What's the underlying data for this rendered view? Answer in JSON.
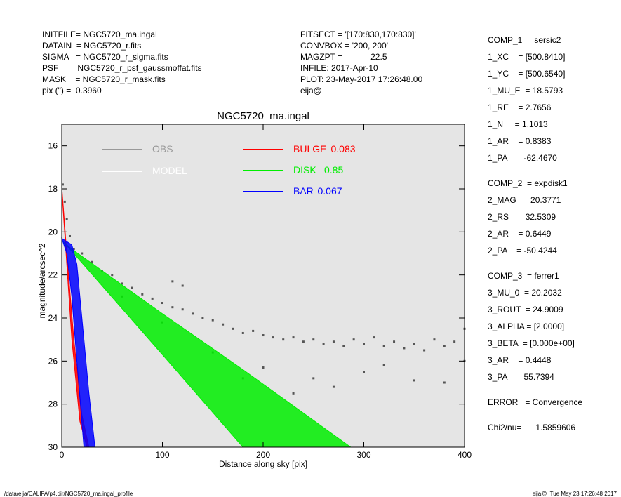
{
  "chart_data": {
    "type": "profile",
    "title": "NGC5720_ma.ingal",
    "xlabel": "Distance along sky [pix]",
    "ylabel": "magnitude/arcsec^2",
    "xlim": [
      0,
      400
    ],
    "xticks": [
      0,
      100,
      200,
      300,
      400
    ],
    "ylim": [
      30,
      15
    ],
    "yticks": [
      16,
      18,
      20,
      22,
      24,
      26,
      28,
      30
    ],
    "background": "#e5e5e5",
    "header_left": [
      "INITFILE= NGC5720_ma.ingal",
      "DATAIN  = NGC5720_r.fits",
      "SIGMA   = NGC5720_r_sigma.fits",
      "PSF     = NGC5720_r_psf_gaussmoffat.fits",
      "MASK    = NGC5720_r_mask.fits",
      "pix (\") =  0.3960"
    ],
    "header_mid": [
      "FITSECT = '[170:830,170:830]'",
      "CONVBOX = '200, 200'",
      "MAGZPT =            22.5",
      "INFILE: 2017-Apr-10",
      "PLOT: 23-May-2017 17:26:48.00",
      "eija@"
    ],
    "params": [
      [
        "COMP_1  = sersic2",
        "1_XC    = [500.8410]",
        "1_YC    = [500.6540]",
        "1_MU_E  = 18.5793",
        "1_RE    = 2.7656",
        "1_N     = 1.1013",
        "1_AR    = 0.8383",
        "1_PA    = -62.4670"
      ],
      [
        "COMP_2  = expdisk1",
        "2_MAG   = 20.3771",
        "2_RS    = 32.5309",
        "2_AR    = 0.6449",
        "2_PA    = -50.4244"
      ],
      [
        "COMP_3  = ferrer1",
        "3_MU_0  = 20.2032",
        "3_ROUT  = 24.9009",
        "3_ALPHA = [2.0000]",
        "3_BETA  = [0.000e+00]",
        "3_AR    = 0.4448",
        "3_PA    = 55.7394"
      ],
      [
        "ERROR   = Convergence"
      ],
      [
        "Chi2/nu=      1.5859606"
      ]
    ],
    "footer_left": "/data/eija/CALIFA/p4.dir/NGC5720_ma.ingal_profile",
    "footer_right": "eija@  Tue May 23 17:26:48 2017",
    "obs": {
      "name": "OBS",
      "color": "#555555",
      "legend_color": "#999999",
      "x": [
        1,
        3,
        5,
        8,
        12,
        20,
        30,
        40,
        50,
        60,
        70,
        80,
        90,
        100,
        110,
        120,
        130,
        140,
        150,
        160,
        170,
        180,
        190,
        200,
        210,
        220,
        230,
        240,
        250,
        260,
        270,
        280,
        290,
        300,
        310,
        320,
        330,
        340,
        350,
        360,
        370,
        380,
        390,
        400,
        60,
        100,
        150,
        200,
        250,
        300,
        350,
        400,
        120,
        110,
        180,
        230,
        270,
        320,
        380
      ],
      "values": [
        17.8,
        18.6,
        19.4,
        20.2,
        20.8,
        21.0,
        21.4,
        21.8,
        22.0,
        22.4,
        22.6,
        22.9,
        23.1,
        23.3,
        23.5,
        23.6,
        23.8,
        24.0,
        24.1,
        24.3,
        24.5,
        24.7,
        24.6,
        24.8,
        24.9,
        25.0,
        24.9,
        25.1,
        25.0,
        25.2,
        25.1,
        25.3,
        25.0,
        25.2,
        24.9,
        25.3,
        25.1,
        25.4,
        25.2,
        25.5,
        25.0,
        25.3,
        25.1,
        24.5,
        23.0,
        24.2,
        25.6,
        26.3,
        26.8,
        26.5,
        26.9,
        26.0,
        22.5,
        22.3,
        26.8,
        27.5,
        27.2,
        26.2,
        27.0
      ]
    },
    "model": {
      "name": "MODEL",
      "color": "#ffffff"
    },
    "series": [
      {
        "name": "BULGE",
        "fraction": 0.083,
        "color": "#ff0000",
        "edges": [
          {
            "x": [
              0,
              5,
              12,
              20,
              27
            ],
            "values": [
              17.9,
              21,
              25,
              28.5,
              30
            ]
          },
          {
            "x": [
              0,
              5,
              10,
              18,
              25
            ],
            "values": [
              18.0,
              21.5,
              25,
              28.8,
              30
            ]
          }
        ]
      },
      {
        "name": "DISK",
        "fraction": 0.85,
        "color": "#00ee00",
        "edges": [
          {
            "x": [
              0,
              10,
              100,
              180,
              287
            ],
            "values": [
              20.4,
              20.8,
              23.8,
              26.4,
              30
            ]
          },
          {
            "x": [
              0,
              10,
              100,
              180
            ],
            "values": [
              20.4,
              20.9,
              25.7,
              30
            ]
          }
        ]
      },
      {
        "name": "BAR",
        "fraction": 0.067,
        "color": "#0000ff",
        "edges": [
          {
            "x": [
              0,
              10,
              15,
              20,
              27,
              33
            ],
            "values": [
              20.3,
              20.6,
              21.5,
              24,
              27.5,
              30
            ]
          },
          {
            "x": [
              0,
              5,
              10,
              15,
              22
            ],
            "values": [
              20.3,
              21,
              23,
              26,
              30
            ]
          }
        ]
      }
    ]
  }
}
